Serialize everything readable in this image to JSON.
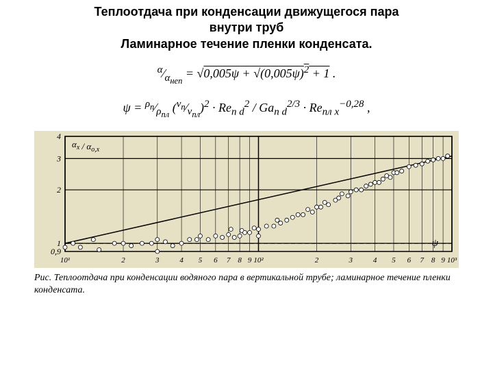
{
  "title_lines": [
    "Теплоотдача при конденсации движущегося пара",
    "внутри труб",
    "Ламинарное течение пленки конденсата."
  ],
  "formula1_html": "<span><sup>α</sup>⁄<sub>α<sub>неп</sub></sub> = √<span style='text-decoration:overline'>0,005ψ + √<span style=\"text-decoration:overline\">(0,005ψ)<sup>2</sup> + 1</span></span> .</span>",
  "formula2_html": "ψ = <sup>ρ<sub>п</sub></sup>⁄<sub>ρ<sub>пл</sub></sub> (<sup>ν<sub>п</sub></sup>⁄<sub>ν<sub>пл</sub></sub>)<sup>2</sup> · Re<sub>п d</sub><sup>2</sup> / Ga<sub>п d</sub><sup>2/3</sup> · Re<sub>пл x</sub><sup>−0,28</sup> ,",
  "chart": {
    "type": "scatter",
    "background_color": "#e6e0c4",
    "grid_color": "#000000",
    "axis_color": "#000000",
    "marker_color": "#ffffff",
    "marker_stroke": "#000000",
    "marker_radius": 3,
    "fit_line_color": "#000000",
    "y_label": "α<tspan font-size=\"10\" dy=\"3\">x</tspan> / α<tspan font-size=\"10\" dy=\"3\">o,x</tspan>",
    "x_label": "ψ",
    "x_log": true,
    "y_log": true,
    "xlim": [
      10,
      1000
    ],
    "ylim": [
      0.9,
      4
    ],
    "y_ticks": [
      0.9,
      1,
      2,
      3,
      4
    ],
    "x_ticks_major": [
      10,
      100,
      1000
    ],
    "x_tick_labels_start": [
      "10¹",
      "2",
      "3",
      "4",
      "5",
      "6",
      "7",
      "8",
      "9",
      "10²"
    ],
    "x_tick_labels_end": [
      "2",
      "3",
      "4",
      "5",
      "6",
      "7",
      "8",
      "9",
      "10³"
    ],
    "dashed_ref_y": 1,
    "scatter": [
      [
        10,
        0.95
      ],
      [
        11,
        1.0
      ],
      [
        12,
        0.95
      ],
      [
        14,
        1.05
      ],
      [
        15,
        0.92
      ],
      [
        18,
        1.0
      ],
      [
        20,
        1.0
      ],
      [
        22,
        0.97
      ],
      [
        25,
        1.0
      ],
      [
        28,
        1.0
      ],
      [
        30,
        1.05
      ],
      [
        30,
        0.9
      ],
      [
        33,
        1.02
      ],
      [
        36,
        0.97
      ],
      [
        40,
        1.0
      ],
      [
        44,
        1.05
      ],
      [
        48,
        1.05
      ],
      [
        50,
        1.1
      ],
      [
        55,
        1.05
      ],
      [
        60,
        1.1
      ],
      [
        65,
        1.08
      ],
      [
        70,
        1.12
      ],
      [
        72,
        1.2
      ],
      [
        75,
        1.08
      ],
      [
        80,
        1.1
      ],
      [
        82,
        1.18
      ],
      [
        85,
        1.15
      ],
      [
        90,
        1.15
      ],
      [
        95,
        1.22
      ],
      [
        100,
        1.2
      ],
      [
        100,
        1.1
      ],
      [
        110,
        1.25
      ],
      [
        120,
        1.25
      ],
      [
        125,
        1.35
      ],
      [
        130,
        1.3
      ],
      [
        140,
        1.35
      ],
      [
        150,
        1.4
      ],
      [
        160,
        1.45
      ],
      [
        170,
        1.45
      ],
      [
        180,
        1.55
      ],
      [
        190,
        1.5
      ],
      [
        200,
        1.6
      ],
      [
        210,
        1.6
      ],
      [
        220,
        1.7
      ],
      [
        230,
        1.65
      ],
      [
        250,
        1.75
      ],
      [
        260,
        1.8
      ],
      [
        270,
        1.9
      ],
      [
        290,
        1.85
      ],
      [
        300,
        1.95
      ],
      [
        320,
        2.0
      ],
      [
        340,
        2.0
      ],
      [
        360,
        2.1
      ],
      [
        380,
        2.15
      ],
      [
        400,
        2.2
      ],
      [
        420,
        2.2
      ],
      [
        440,
        2.3
      ],
      [
        460,
        2.4
      ],
      [
        480,
        2.35
      ],
      [
        500,
        2.5
      ],
      [
        520,
        2.5
      ],
      [
        550,
        2.55
      ],
      [
        600,
        2.7
      ],
      [
        650,
        2.75
      ],
      [
        700,
        2.8
      ],
      [
        750,
        2.9
      ],
      [
        800,
        2.95
      ],
      [
        850,
        3.0
      ],
      [
        900,
        3.0
      ],
      [
        950,
        3.1
      ]
    ],
    "fit_line": [
      [
        10,
        1.0
      ],
      [
        1000,
        3.1
      ]
    ]
  },
  "caption": "Рис. Теплоотдача при конденсации водяного пара в вертикальной трубе; ламинарное течение пленки конденсата."
}
